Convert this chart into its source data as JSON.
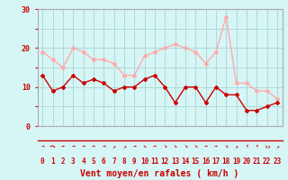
{
  "xlabel": "Vent moyen/en rafales ( km/h )",
  "background_color": "#d6f5f5",
  "grid_color": "#b0d8d8",
  "x_values": [
    0,
    1,
    2,
    3,
    4,
    5,
    6,
    7,
    8,
    9,
    10,
    11,
    12,
    13,
    14,
    15,
    16,
    17,
    18,
    19,
    20,
    21,
    22,
    23
  ],
  "mean_wind": [
    13,
    9,
    10,
    13,
    11,
    12,
    11,
    9,
    10,
    10,
    12,
    13,
    10,
    6,
    10,
    10,
    6,
    10,
    8,
    8,
    4,
    4,
    5,
    6
  ],
  "gust_wind": [
    19,
    17,
    15,
    20,
    19,
    17,
    17,
    16,
    13,
    13,
    18,
    19,
    20,
    21,
    20,
    19,
    16,
    19,
    28,
    11,
    11,
    9,
    9,
    7
  ],
  "mean_color": "#cc0000",
  "gust_color": "#ffaaaa",
  "ylim": [
    0,
    30
  ],
  "yticks": [
    0,
    5,
    10,
    15,
    20,
    25,
    30
  ],
  "ytick_labels": [
    "0",
    "",
    "10",
    "",
    "20",
    "",
    "30"
  ],
  "wind_directions": [
    "→",
    "→↘",
    "→",
    "→",
    "→",
    "→",
    "→",
    "↗",
    "↗",
    "→",
    "↘",
    "→",
    "↘",
    "↘",
    "↘",
    "↘",
    "→",
    "→",
    "↘",
    "↗",
    "↑",
    "↑",
    "↑↗",
    "↗"
  ]
}
